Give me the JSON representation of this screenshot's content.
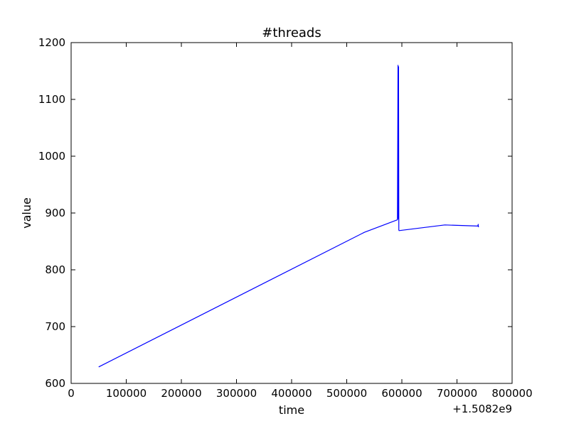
{
  "chart_data": {
    "type": "line",
    "title": "#threads",
    "xlabel": "time",
    "ylabel": "value",
    "x_offset_label": "+1.5082e9",
    "xlim": [
      0,
      800000
    ],
    "ylim": [
      600,
      1200
    ],
    "xticks": [
      0,
      100000,
      200000,
      300000,
      400000,
      500000,
      600000,
      700000,
      800000
    ],
    "xtick_labels": [
      "0",
      "100000",
      "200000",
      "300000",
      "400000",
      "500000",
      "600000",
      "700000",
      "800000"
    ],
    "yticks": [
      600,
      700,
      800,
      900,
      1000,
      1100,
      1200
    ],
    "ytick_labels": [
      "600",
      "700",
      "800",
      "900",
      "1000",
      "1100",
      "1200"
    ],
    "grid": false,
    "series": [
      {
        "color": "#0000ff",
        "x": [
          50000,
          532000,
          592000,
          593000,
          593200,
          593600,
          594000,
          594500,
          595000,
          678000,
          738000,
          738500,
          739000
        ],
        "y": [
          629,
          866,
          888,
          1160,
          890,
          1158,
          1157,
          870,
          869,
          879,
          877,
          880,
          875
        ]
      }
    ]
  }
}
